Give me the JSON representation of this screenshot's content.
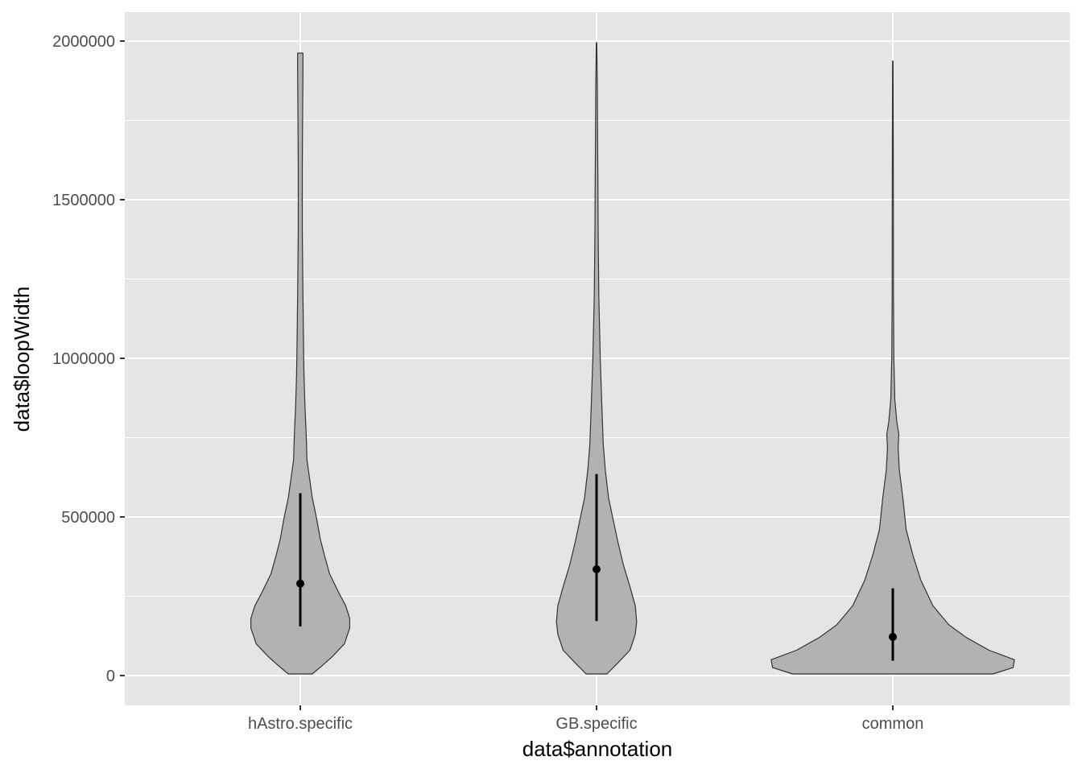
{
  "chart_data": {
    "type": "violin",
    "title": "",
    "xlabel": "data$annotation",
    "ylabel": "data$loopWidth",
    "categories": [
      "hAstro.specific",
      "GB.specific",
      "common"
    ],
    "ylim": [
      -90000,
      2090000
    ],
    "y_ticks": [
      0,
      500000,
      1000000,
      1500000,
      2000000
    ],
    "y_tick_labels": [
      "0",
      "500000",
      "1000000",
      "1500000",
      "2000000"
    ],
    "grid": true,
    "legend": "none",
    "colors": {
      "panel": "#e5e5e5",
      "grid": "#ffffff",
      "violin_fill": "#b2b2b2",
      "violin_stroke": "#333333",
      "summary": "#000000"
    },
    "summaries": [
      {
        "category": "hAstro.specific",
        "mean": 290000,
        "lower": 155000,
        "upper": 575000
      },
      {
        "category": "GB.specific",
        "mean": 335000,
        "lower": 172000,
        "upper": 635000
      },
      {
        "category": "common",
        "mean": 122000,
        "lower": 47000,
        "upper": 275000
      }
    ],
    "density": [
      {
        "category": "hAstro.specific",
        "min": 5000,
        "max": 1962000,
        "profile": [
          [
            5000,
            0.09
          ],
          [
            30000,
            0.16
          ],
          [
            60000,
            0.24
          ],
          [
            100000,
            0.33
          ],
          [
            150000,
            0.37
          ],
          [
            180000,
            0.37
          ],
          [
            220000,
            0.34
          ],
          [
            260000,
            0.29
          ],
          [
            320000,
            0.22
          ],
          [
            380000,
            0.18
          ],
          [
            430000,
            0.15
          ],
          [
            500000,
            0.12
          ],
          [
            560000,
            0.09
          ],
          [
            620000,
            0.07
          ],
          [
            680000,
            0.05
          ],
          [
            750000,
            0.045
          ],
          [
            850000,
            0.035
          ],
          [
            950000,
            0.028
          ],
          [
            1050000,
            0.024
          ],
          [
            1200000,
            0.02
          ],
          [
            1400000,
            0.015
          ],
          [
            1600000,
            0.015
          ],
          [
            1800000,
            0.018
          ],
          [
            1900000,
            0.02
          ],
          [
            1962000,
            0.02
          ]
        ]
      },
      {
        "category": "GB.specific",
        "min": 5000,
        "max": 1995000,
        "profile": [
          [
            5000,
            0.078
          ],
          [
            40000,
            0.16
          ],
          [
            80000,
            0.25
          ],
          [
            130000,
            0.29
          ],
          [
            170000,
            0.3
          ],
          [
            220000,
            0.29
          ],
          [
            280000,
            0.25
          ],
          [
            350000,
            0.2
          ],
          [
            420000,
            0.16
          ],
          [
            500000,
            0.12
          ],
          [
            560000,
            0.09
          ],
          [
            650000,
            0.065
          ],
          [
            730000,
            0.05
          ],
          [
            850000,
            0.04
          ],
          [
            1000000,
            0.028
          ],
          [
            1200000,
            0.017
          ],
          [
            1400000,
            0.012
          ],
          [
            1550000,
            0.01
          ],
          [
            1700000,
            0.008
          ],
          [
            1850000,
            0.006
          ],
          [
            1995000,
            0.002
          ]
        ]
      },
      {
        "category": "common",
        "min": 5000,
        "max": 1937000,
        "profile": [
          [
            5000,
            0.75
          ],
          [
            25000,
            0.9
          ],
          [
            50000,
            0.91
          ],
          [
            80000,
            0.72
          ],
          [
            120000,
            0.55
          ],
          [
            160000,
            0.42
          ],
          [
            220000,
            0.3
          ],
          [
            300000,
            0.21
          ],
          [
            380000,
            0.15
          ],
          [
            460000,
            0.1
          ],
          [
            560000,
            0.075
          ],
          [
            650000,
            0.048
          ],
          [
            720000,
            0.04
          ],
          [
            760000,
            0.045
          ],
          [
            800000,
            0.03
          ],
          [
            870000,
            0.015
          ],
          [
            1000000,
            0.008
          ],
          [
            1200000,
            0.005
          ],
          [
            1500000,
            0.004
          ],
          [
            1937000,
            0.002
          ]
        ]
      }
    ]
  }
}
